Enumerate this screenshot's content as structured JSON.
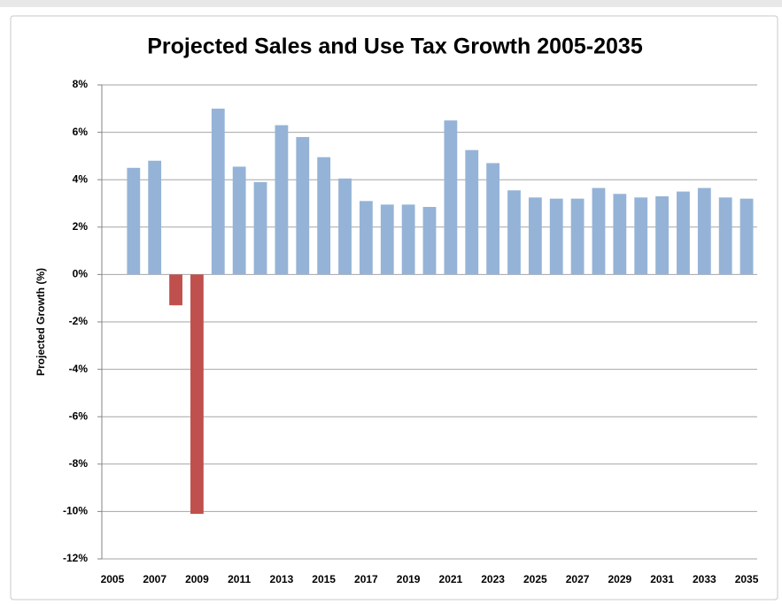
{
  "chart_data": {
    "type": "bar",
    "title": "Projected Sales and Use Tax Growth 2005-2035",
    "y_label": "Projected Growth (%)",
    "categories": [
      "2005",
      null,
      "2007",
      null,
      "2009",
      null,
      "2011",
      null,
      "2013",
      null,
      "2015",
      null,
      "2017",
      null,
      "2019",
      null,
      "2021",
      null,
      "2023",
      null,
      "2025",
      null,
      "2027",
      null,
      "2029",
      null,
      "2031",
      null,
      "2033",
      null,
      "2035"
    ],
    "values": [
      null,
      4.5,
      4.8,
      -1.3,
      -10.1,
      7.0,
      4.55,
      3.9,
      6.3,
      5.8,
      4.95,
      4.05,
      3.1,
      2.95,
      2.95,
      2.85,
      6.5,
      5.25,
      4.7,
      3.55,
      3.25,
      3.2,
      3.2,
      3.65,
      3.4,
      3.25,
      3.3,
      3.5,
      3.65,
      3.25,
      3.2
    ],
    "color": "#95b3d7",
    "negative_color": "#c0504d",
    "ylim": [
      -12,
      8
    ],
    "yticks": [
      {
        "value": -12,
        "label": "-12%"
      },
      {
        "value": -10,
        "label": "-10%"
      },
      {
        "value": -8,
        "label": "-8%"
      },
      {
        "value": -6,
        "label": "-6%"
      },
      {
        "value": -4,
        "label": "-4%"
      },
      {
        "value": -2,
        "label": "-2%"
      },
      {
        "value": 0,
        "label": "0%"
      },
      {
        "value": 2,
        "label": "2%"
      },
      {
        "value": 4,
        "label": "4%"
      },
      {
        "value": 6,
        "label": "6%"
      },
      {
        "value": 8,
        "label": "8%"
      }
    ],
    "grid": true
  }
}
